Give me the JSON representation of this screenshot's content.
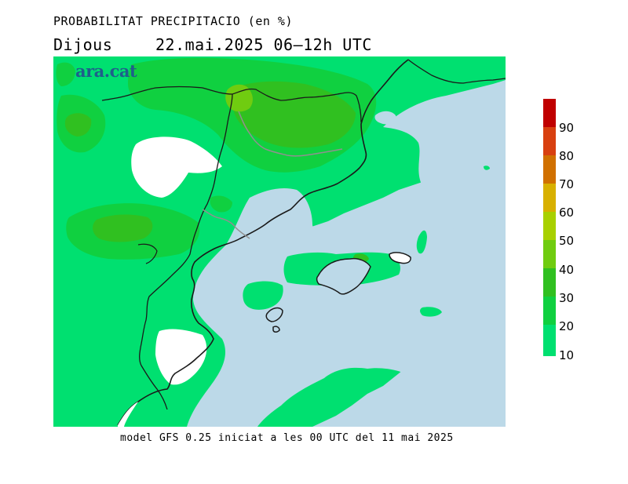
{
  "header": {
    "title": "PROBABILITAT PRECIPITACIO (en %)",
    "day": "Dijous",
    "date_range": "22.mai.2025 06–12h UTC"
  },
  "logo": {
    "text": "ara.cat",
    "color": "#1f5f8b"
  },
  "footer": {
    "model_text": "model GFS 0.25 iniciat a les 00 UTC del 11 mai 2025"
  },
  "legend": {
    "labels": [
      "90",
      "80",
      "70",
      "60",
      "50",
      "40",
      "30",
      "20",
      "10"
    ],
    "colors_top_to_bottom": [
      "#c00000",
      "#d84010",
      "#d07000",
      "#d8b000",
      "#a8d000",
      "#70cc10",
      "#30c020",
      "#10d040",
      "#00e070"
    ]
  },
  "map": {
    "sea_color": "#bcd9e8",
    "land_no_data_color": "#ffffff",
    "color_10_20": "#00e070",
    "color_20_30": "#10d040",
    "color_30_40": "#30c020",
    "color_40_50": "#70cc10"
  }
}
